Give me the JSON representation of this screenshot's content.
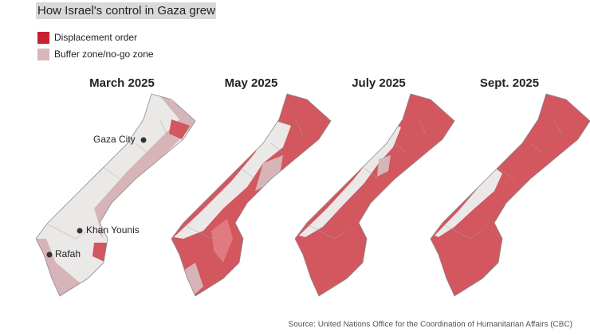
{
  "title": "How Israel's control in Gaza grew",
  "legend": [
    {
      "label": "Displacement order",
      "color": "#c8202f"
    },
    {
      "label": "Buffer zone/no-go zone",
      "color": "#d9b6ba"
    }
  ],
  "panels": [
    {
      "title": "March 2025"
    },
    {
      "title": "May 2025"
    },
    {
      "title": "July 2025"
    },
    {
      "title": "Sept. 2025"
    }
  ],
  "cities": [
    {
      "label": "Gaza City"
    },
    {
      "label": "Khan Younis"
    },
    {
      "label": "Rafah"
    }
  ],
  "source": "Source: United Nations Office for the Coordination of Humanitarian Affairs (CBC)"
}
